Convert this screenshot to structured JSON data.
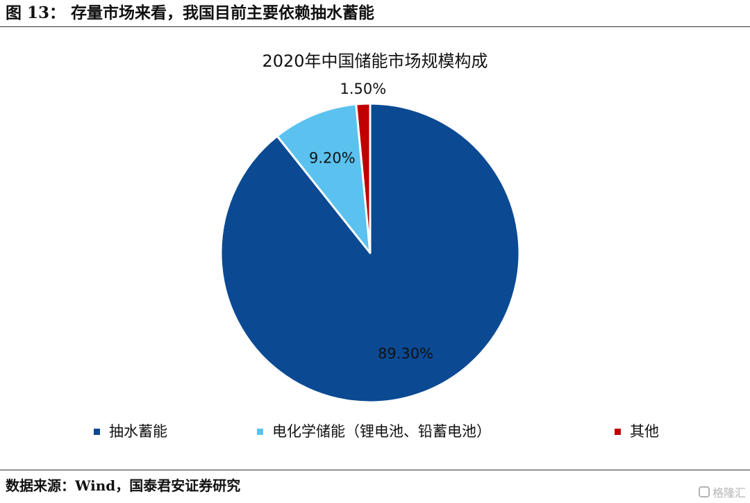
{
  "figure": {
    "title": "图 13： 存量市场来看，我国目前主要依赖抽水蓄能",
    "source": "数据来源：Wind，国泰君安证券研究",
    "watermark": "格隆汇",
    "watermark_icon": "brand-logo-icon"
  },
  "chart_data": {
    "type": "pie",
    "title": "2020年中国储能市场规模构成",
    "categories": [
      "抽水蓄能",
      "电化学储能（锂电池、铅蓄电池）",
      "其他"
    ],
    "values": [
      89.3,
      9.2,
      1.5
    ],
    "data_labels": [
      "89.30%",
      "9.20%",
      "1.50%"
    ],
    "colors": [
      "#0B4A93",
      "#5BC2EF",
      "#C00000"
    ],
    "start_angle_deg": 0,
    "direction": "clockwise",
    "legend_position": "bottom",
    "slice_border_color": "#ffffff"
  }
}
